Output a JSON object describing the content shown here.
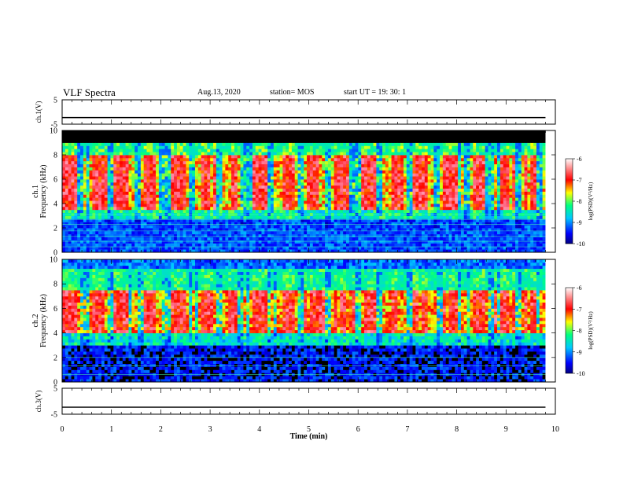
{
  "header": {
    "title": "VLF Spectra",
    "date": "Aug.13, 2020",
    "station": "station= MOS",
    "start": "start  UT =   19: 30: 1"
  },
  "chart_data": [
    {
      "type": "line",
      "panel": "ch1-voltage",
      "ylabel": "ch.1(V)",
      "ylim": [
        -5,
        5
      ],
      "yticks": [
        "5",
        "-5"
      ],
      "xlim": [
        0,
        10
      ],
      "series": [
        {
          "x": [
            0,
            9.8
          ],
          "values": [
            -2.3,
            -2.3
          ]
        }
      ]
    },
    {
      "type": "heatmap",
      "panel": "ch1-spectrogram",
      "ylabel": "ch.1 Frequency (kHz)",
      "ylim": [
        0,
        10
      ],
      "yticks": [
        "0",
        "2",
        "4",
        "6",
        "8",
        "10"
      ],
      "xlim": [
        0,
        10
      ],
      "data_end_min": 9.8,
      "colorbar": {
        "label": "log(PSD)(V²/Hz)",
        "range": [
          -10,
          -6
        ],
        "ticks": [
          "-6",
          "-7",
          "-8",
          "-9",
          "-10"
        ]
      }
    },
    {
      "type": "heatmap",
      "panel": "ch2-spectrogram",
      "ylabel": "ch.2 Frequency (kHz)",
      "ylim": [
        0,
        10
      ],
      "yticks": [
        "0",
        "2",
        "4",
        "6",
        "8",
        "10"
      ],
      "xlim": [
        0,
        10
      ],
      "data_end_min": 9.8,
      "colorbar": {
        "label": "log(PSD)(V²/Hz)",
        "range": [
          -10,
          -6
        ],
        "ticks": [
          "-6",
          "-7",
          "-8",
          "-9",
          "-10"
        ]
      }
    },
    {
      "type": "line",
      "panel": "ch3-voltage",
      "ylabel": "ch.3(V)",
      "ylim": [
        -5,
        5
      ],
      "yticks": [
        "5",
        "-5"
      ],
      "xlim": [
        0,
        10
      ],
      "series": [
        {
          "x": [
            0,
            9.8
          ],
          "values": [
            -2.3,
            -2.3
          ]
        }
      ]
    }
  ],
  "x_axis": {
    "label": "Time  (min)",
    "ticks": [
      "0",
      "1",
      "2",
      "3",
      "4",
      "5",
      "6",
      "7",
      "8",
      "9",
      "10"
    ]
  }
}
